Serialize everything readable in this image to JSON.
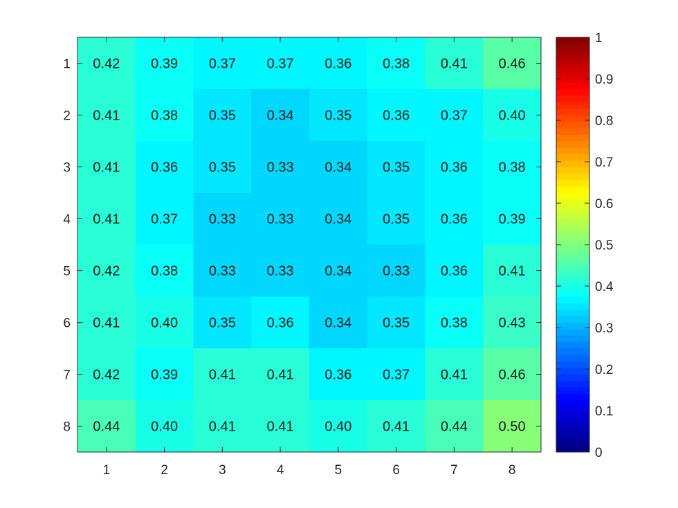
{
  "chart_data": {
    "type": "heatmap",
    "title": "",
    "xlabel": "",
    "ylabel": "",
    "x_labels": [
      "1",
      "2",
      "3",
      "4",
      "5",
      "6",
      "7",
      "8"
    ],
    "y_labels": [
      "1",
      "2",
      "3",
      "4",
      "5",
      "6",
      "7",
      "8"
    ],
    "values": [
      [
        0.42,
        0.39,
        0.37,
        0.37,
        0.36,
        0.38,
        0.41,
        0.46
      ],
      [
        0.41,
        0.38,
        0.35,
        0.34,
        0.35,
        0.36,
        0.37,
        0.4
      ],
      [
        0.41,
        0.36,
        0.35,
        0.33,
        0.34,
        0.35,
        0.36,
        0.38
      ],
      [
        0.41,
        0.37,
        0.33,
        0.33,
        0.34,
        0.35,
        0.36,
        0.39
      ],
      [
        0.42,
        0.38,
        0.33,
        0.33,
        0.34,
        0.33,
        0.36,
        0.41
      ],
      [
        0.41,
        0.4,
        0.35,
        0.36,
        0.34,
        0.35,
        0.38,
        0.43
      ],
      [
        0.42,
        0.39,
        0.41,
        0.41,
        0.36,
        0.37,
        0.41,
        0.46
      ],
      [
        0.44,
        0.4,
        0.41,
        0.41,
        0.4,
        0.41,
        0.44,
        0.5
      ]
    ],
    "cell_labels": [
      [
        "0.42",
        "0.39",
        "0.37",
        "0.37",
        "0.36",
        "0.38",
        "0.41",
        "0.46"
      ],
      [
        "0.41",
        "0.38",
        "0.35",
        "0.34",
        "0.35",
        "0.36",
        "0.37",
        "0.40"
      ],
      [
        "0.41",
        "0.36",
        "0.35",
        "0.33",
        "0.34",
        "0.35",
        "0.36",
        "0.38"
      ],
      [
        "0.41",
        "0.37",
        "0.33",
        "0.33",
        "0.34",
        "0.35",
        "0.36",
        "0.39"
      ],
      [
        "0.42",
        "0.38",
        "0.33",
        "0.33",
        "0.34",
        "0.33",
        "0.36",
        "0.41"
      ],
      [
        "0.41",
        "0.40",
        "0.35",
        "0.36",
        "0.34",
        "0.35",
        "0.38",
        "0.43"
      ],
      [
        "0.42",
        "0.39",
        "0.41",
        "0.41",
        "0.36",
        "0.37",
        "0.41",
        "0.46"
      ],
      [
        "0.44",
        "0.40",
        "0.41",
        "0.41",
        "0.40",
        "0.41",
        "0.44",
        "0.50"
      ]
    ],
    "colormap": "jet",
    "color_levels": 64,
    "clim": [
      0,
      1
    ],
    "colorbar": {
      "placement": "right",
      "ticks": [
        0,
        0.1,
        0.2,
        0.3,
        0.4,
        0.5,
        0.6,
        0.7,
        0.8,
        0.9,
        1
      ],
      "tick_labels": [
        "0",
        "0.1",
        "0.2",
        "0.3",
        "0.4",
        "0.5",
        "0.6",
        "0.7",
        "0.8",
        "0.9",
        "1"
      ]
    },
    "grid": false
  }
}
